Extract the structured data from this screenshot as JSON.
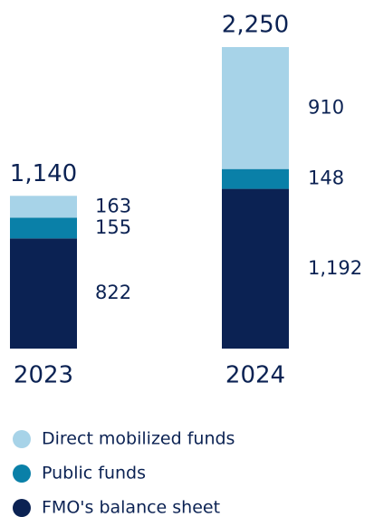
{
  "chart_data": {
    "type": "stacked_bar",
    "categories": [
      "2023",
      "2024"
    ],
    "series": [
      {
        "name": "FMO's balance sheet",
        "color": "#0b2253",
        "values": [
          822,
          1192
        ],
        "value_labels": [
          "822",
          "1,192"
        ]
      },
      {
        "name": "Public funds",
        "color": "#0a80a8",
        "values": [
          155,
          148
        ]
      },
      {
        "name": "Direct mobilized funds",
        "color": "#a7d3e8",
        "values": [
          163,
          910
        ]
      }
    ],
    "totals": [
      1140,
      2250
    ],
    "total_labels": [
      "1,140",
      "2,250"
    ],
    "ylim": [
      0,
      2250
    ]
  }
}
